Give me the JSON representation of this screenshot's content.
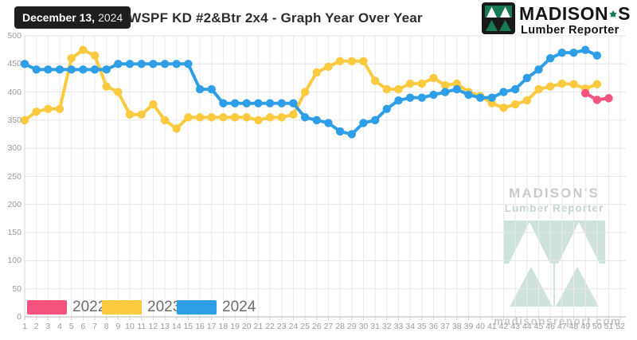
{
  "header": {
    "date_badge": {
      "date": "December 13,",
      "year": "2024"
    },
    "title": "WSPF KD #2&Btr 2x4 - Graph Year Over Year",
    "brand": {
      "word_main": "MADISON",
      "word_suffix": "S",
      "leaf_icon": "maple-leaf",
      "logo_icon": "madisons-triangles",
      "tagline": "Lumber Reporter",
      "green": "#177a53"
    }
  },
  "watermark": {
    "line1": "MADISON'S",
    "line2": "Lumber Reporter",
    "logo_icon": "madisons-triangles",
    "site": "madisonsreport.com",
    "pale_green": "#cfe3dc"
  },
  "chart_data": {
    "type": "line",
    "title": "WSPF KD #2&Btr 2x4 - Graph Year Over Year",
    "x_ticks": [
      1,
      2,
      3,
      4,
      5,
      6,
      7,
      8,
      9,
      10,
      11,
      12,
      13,
      14,
      15,
      16,
      17,
      18,
      19,
      20,
      21,
      22,
      23,
      24,
      25,
      26,
      27,
      28,
      29,
      30,
      31,
      32,
      33,
      34,
      35,
      36,
      37,
      38,
      39,
      40,
      41,
      42,
      43,
      44,
      45,
      46,
      47,
      48,
      49,
      50,
      51,
      52
    ],
    "y_ticks": [
      0,
      50,
      100,
      150,
      200,
      250,
      300,
      350,
      400,
      450,
      500
    ],
    "ylim": [
      0,
      500
    ],
    "grid": true,
    "marker": "circle",
    "legend_position": "bottom-left",
    "draw_order": [
      1,
      2,
      0
    ],
    "series": [
      {
        "name": "2022",
        "color": "#f4537e",
        "values": [
          null,
          null,
          null,
          null,
          null,
          null,
          null,
          null,
          null,
          null,
          null,
          null,
          null,
          null,
          null,
          null,
          null,
          null,
          null,
          null,
          null,
          null,
          null,
          null,
          null,
          null,
          null,
          null,
          null,
          null,
          null,
          null,
          null,
          null,
          null,
          null,
          null,
          null,
          null,
          null,
          null,
          null,
          null,
          null,
          null,
          null,
          null,
          null,
          398,
          386,
          389,
          null
        ]
      },
      {
        "name": "2023",
        "color": "#fcca3f",
        "values": [
          350,
          365,
          370,
          370,
          460,
          475,
          465,
          410,
          400,
          360,
          360,
          378,
          350,
          335,
          355,
          355,
          355,
          355,
          355,
          355,
          350,
          355,
          355,
          360,
          400,
          435,
          445,
          455,
          455,
          455,
          420,
          405,
          405,
          415,
          415,
          425,
          412,
          415,
          400,
          393,
          380,
          372,
          378,
          385,
          405,
          410,
          415,
          414,
          406,
          414,
          null,
          null
        ]
      },
      {
        "name": "2024",
        "color": "#2e9fe6",
        "values": [
          450,
          440,
          440,
          440,
          440,
          440,
          440,
          440,
          450,
          450,
          450,
          450,
          450,
          450,
          450,
          405,
          405,
          380,
          380,
          380,
          380,
          380,
          380,
          380,
          355,
          350,
          345,
          330,
          325,
          345,
          350,
          370,
          385,
          390,
          390,
          395,
          400,
          405,
          395,
          390,
          390,
          400,
          405,
          425,
          440,
          460,
          470,
          470,
          475,
          465,
          null,
          null
        ]
      }
    ]
  }
}
